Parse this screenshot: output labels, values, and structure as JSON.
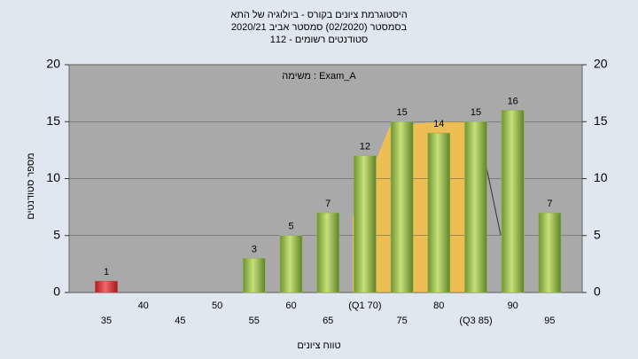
{
  "chart_data": {
    "type": "bar",
    "title_lines": [
      "היסטוגרמת ציונים בקורס - ביולוגיה של התא",
      "בסמסטר  (02/2020)  סמסטר אביב 2020/21",
      "סטודנטים רשומים - 112"
    ],
    "annotation": "משימה : Exam_A",
    "x_label": "טווח ציונים",
    "y_label": "מספר סטודנטים",
    "categories": [
      "35",
      "40",
      "45",
      "50",
      "55",
      "60",
      "65",
      "(Q1 70)",
      "75",
      "80",
      "(Q3 85)",
      "90",
      "95"
    ],
    "values": [
      1,
      0,
      0,
      0,
      3,
      5,
      7,
      12,
      15,
      14,
      15,
      16,
      7
    ],
    "colors": [
      "#d9363a",
      "#8db34a",
      "#8db34a",
      "#8db34a",
      "#8db34a",
      "#8db34a",
      "#8db34a",
      "#8db34a",
      "#8db34a",
      "#8db34a",
      "#8db34a",
      "#8db34a",
      "#8db34a"
    ],
    "ylim": [
      0,
      20
    ],
    "yticks": [
      0,
      5,
      10,
      15,
      20
    ],
    "y2lim": [
      0,
      20
    ],
    "y2ticks": [
      0,
      5,
      10,
      15,
      20
    ],
    "grid": true
  }
}
